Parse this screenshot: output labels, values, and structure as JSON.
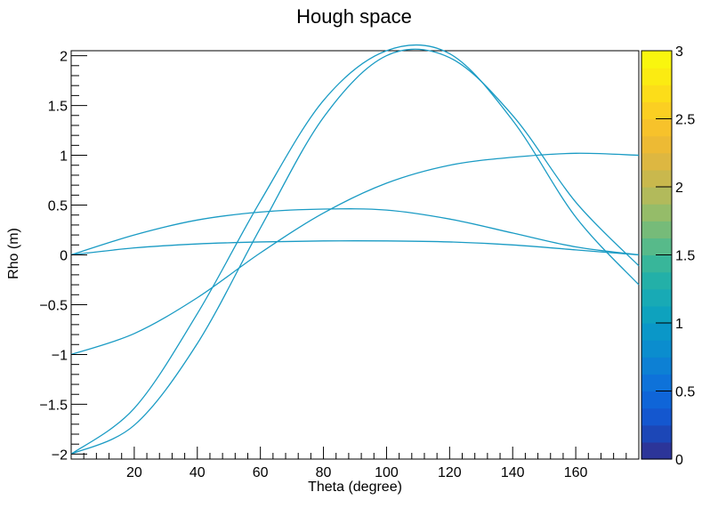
{
  "chart_data": {
    "type": "heatmap",
    "title": "Hough space",
    "xlabel": "Theta (degree)",
    "ylabel": "Rho (m)",
    "xlim": [
      0,
      180
    ],
    "ylim": [
      -2.05,
      2.05
    ],
    "x_tick_labels": [
      "20",
      "40",
      "60",
      "80",
      "100",
      "120",
      "140",
      "160"
    ],
    "x_tick_values": [
      20,
      40,
      60,
      80,
      100,
      120,
      140,
      160
    ],
    "y_tick_labels": [
      "−2",
      "−1.5",
      "−1",
      "−0.5",
      "0",
      "0.5",
      "1",
      "1.5",
      "2"
    ],
    "y_tick_values": [
      -2,
      -1.5,
      -1,
      -0.5,
      0,
      0.5,
      1,
      1.5,
      2
    ],
    "curve_color": "#1a9bc4",
    "series": [
      {
        "x": [
          0,
          20,
          40,
          60,
          80,
          100,
          120,
          140,
          160,
          180
        ],
        "values": [
          -2.0,
          -1.71,
          -0.89,
          0.27,
          1.38,
          2.0,
          1.98,
          1.4,
          0.53,
          -0.11
        ]
      },
      {
        "x": [
          0,
          20,
          40,
          60,
          80,
          100,
          120,
          140,
          160,
          180
        ],
        "values": [
          -2.0,
          -1.54,
          -0.59,
          0.54,
          1.55,
          2.05,
          2.02,
          1.35,
          0.38,
          -0.3
        ]
      },
      {
        "x": [
          0,
          20,
          40,
          60,
          80,
          100,
          120,
          140,
          160,
          180
        ],
        "values": [
          -1.0,
          -0.79,
          -0.43,
          0.02,
          0.42,
          0.72,
          0.9,
          0.98,
          1.02,
          1.0
        ]
      },
      {
        "x": [
          0,
          20,
          40,
          60,
          80,
          100,
          120,
          140,
          160,
          180
        ],
        "values": [
          0.0,
          0.2,
          0.35,
          0.43,
          0.46,
          0.45,
          0.36,
          0.22,
          0.08,
          0.0
        ]
      },
      {
        "x": [
          0,
          20,
          40,
          60,
          80,
          100,
          120,
          140,
          160,
          180
        ],
        "values": [
          0.0,
          0.07,
          0.11,
          0.13,
          0.14,
          0.14,
          0.13,
          0.1,
          0.05,
          0.0
        ]
      }
    ],
    "colorbar": {
      "range": [
        0,
        3
      ],
      "tick_labels": [
        "0",
        "0.5",
        "1",
        "1.5",
        "2",
        "2.5",
        "3"
      ],
      "tick_values": [
        0,
        0.5,
        1,
        1.5,
        2,
        2.5,
        3
      ],
      "colors": [
        "#2c3599",
        "#1c47b7",
        "#1457cf",
        "#0f65d8",
        "#0e72d9",
        "#0d80d4",
        "#0b8dce",
        "#0a97c8",
        "#0ea2be",
        "#18aab5",
        "#23b0a8",
        "#38b69a",
        "#57ba8a",
        "#76bb79",
        "#95bc69",
        "#b2ba5b",
        "#c9b84d",
        "#ddb741",
        "#edba34",
        "#f7c22b",
        "#fbcf22",
        "#fcdd19",
        "#fbeb12",
        "#f9f60e"
      ]
    }
  }
}
